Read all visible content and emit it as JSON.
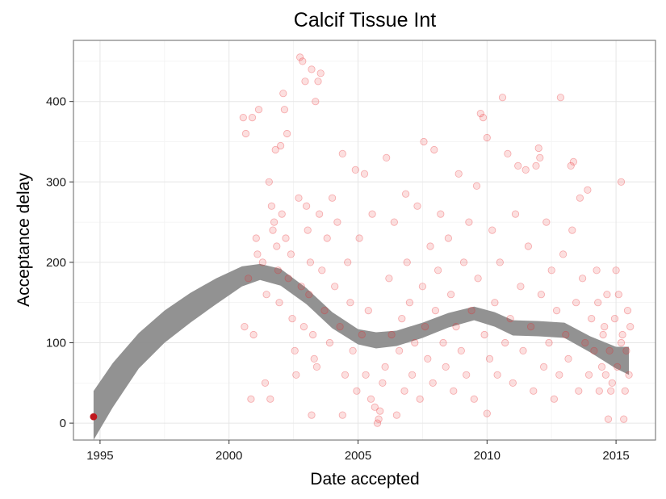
{
  "chart_data": {
    "type": "scatter",
    "title": "Calcif Tissue Int",
    "xlabel": "Date accepted",
    "ylabel": "Acceptance delay",
    "xlim": [
      1993.97,
      2016.53
    ],
    "ylim": [
      -21,
      476
    ],
    "x_ticks": [
      1995,
      2000,
      2005,
      2010,
      2015
    ],
    "x_tick_labels": [
      "1995",
      "2000",
      "2005",
      "2010",
      "2015"
    ],
    "y_ticks": [
      0,
      100,
      200,
      300,
      400
    ],
    "y_tick_labels": [
      "0",
      "100",
      "200",
      "300",
      "400"
    ],
    "grid": true,
    "legend": "none",
    "point_color": "#e8252b",
    "point_opacity": 0.15,
    "highlight_point": {
      "x": 1994.75,
      "y": 8,
      "color": "#c0181e"
    },
    "points": [
      [
        2000.55,
        380
      ],
      [
        2000.65,
        360
      ],
      [
        2000.9,
        380
      ],
      [
        2001.15,
        390
      ],
      [
        2001.8,
        340
      ],
      [
        2002.0,
        345
      ],
      [
        2002.1,
        410
      ],
      [
        2002.15,
        390
      ],
      [
        2002.25,
        360
      ],
      [
        2002.75,
        455
      ],
      [
        2002.85,
        450
      ],
      [
        2002.95,
        425
      ],
      [
        2003.2,
        440
      ],
      [
        2003.35,
        400
      ],
      [
        2003.45,
        425
      ],
      [
        2003.55,
        435
      ],
      [
        2003.0,
        270
      ],
      [
        2004.4,
        335
      ],
      [
        2004.9,
        315
      ],
      [
        2005.25,
        310
      ],
      [
        2005.55,
        260
      ],
      [
        2006.1,
        330
      ],
      [
        2006.85,
        285
      ],
      [
        2007.55,
        350
      ],
      [
        2007.95,
        340
      ],
      [
        2008.9,
        310
      ],
      [
        2009.6,
        295
      ],
      [
        2009.75,
        385
      ],
      [
        2009.85,
        380
      ],
      [
        2010.0,
        355
      ],
      [
        2010.6,
        405
      ],
      [
        2010.8,
        335
      ],
      [
        2011.2,
        320
      ],
      [
        2011.5,
        315
      ],
      [
        2011.9,
        320
      ],
      [
        2012.0,
        342
      ],
      [
        2012.05,
        330
      ],
      [
        2012.85,
        405
      ],
      [
        2013.25,
        320
      ],
      [
        2013.35,
        325
      ],
      [
        2013.6,
        280
      ],
      [
        2013.9,
        290
      ],
      [
        2014.3,
        150
      ],
      [
        2014.5,
        110
      ],
      [
        2015.2,
        300
      ],
      [
        2015.2,
        100
      ],
      [
        2015.0,
        190
      ],
      [
        2014.8,
        40
      ],
      [
        2014.6,
        60
      ],
      [
        2014.7,
        5
      ],
      [
        2015.3,
        5
      ],
      [
        2010.0,
        12
      ],
      [
        2005.8,
        5
      ],
      [
        2005.75,
        0
      ],
      [
        2006.5,
        10
      ],
      [
        2004.4,
        10
      ],
      [
        2003.2,
        10
      ],
      [
        2001.4,
        50
      ],
      [
        2001.6,
        30
      ],
      [
        2000.85,
        30
      ],
      [
        2000.6,
        120
      ],
      [
        2000.75,
        180
      ],
      [
        2000.95,
        110
      ],
      [
        2001.05,
        230
      ],
      [
        2001.1,
        210
      ],
      [
        2001.3,
        200
      ],
      [
        2001.45,
        160
      ],
      [
        2001.55,
        300
      ],
      [
        2001.65,
        270
      ],
      [
        2001.7,
        240
      ],
      [
        2001.75,
        250
      ],
      [
        2001.85,
        220
      ],
      [
        2001.9,
        190
      ],
      [
        2001.95,
        150
      ],
      [
        2002.05,
        260
      ],
      [
        2002.2,
        230
      ],
      [
        2002.3,
        180
      ],
      [
        2002.4,
        210
      ],
      [
        2002.45,
        130
      ],
      [
        2002.55,
        90
      ],
      [
        2002.6,
        60
      ],
      [
        2002.7,
        280
      ],
      [
        2002.8,
        170
      ],
      [
        2002.9,
        120
      ],
      [
        2003.05,
        240
      ],
      [
        2003.1,
        160
      ],
      [
        2003.15,
        200
      ],
      [
        2003.25,
        110
      ],
      [
        2003.3,
        80
      ],
      [
        2003.4,
        70
      ],
      [
        2003.5,
        260
      ],
      [
        2003.6,
        190
      ],
      [
        2003.7,
        140
      ],
      [
        2003.8,
        230
      ],
      [
        2003.9,
        100
      ],
      [
        2004.0,
        280
      ],
      [
        2004.1,
        170
      ],
      [
        2004.2,
        250
      ],
      [
        2004.3,
        120
      ],
      [
        2004.5,
        60
      ],
      [
        2004.6,
        200
      ],
      [
        2004.7,
        150
      ],
      [
        2004.8,
        90
      ],
      [
        2004.95,
        40
      ],
      [
        2005.05,
        230
      ],
      [
        2005.15,
        110
      ],
      [
        2005.3,
        60
      ],
      [
        2005.4,
        140
      ],
      [
        2005.5,
        30
      ],
      [
        2005.65,
        20
      ],
      [
        2005.85,
        15
      ],
      [
        2005.95,
        50
      ],
      [
        2006.05,
        70
      ],
      [
        2006.2,
        180
      ],
      [
        2006.3,
        110
      ],
      [
        2006.4,
        250
      ],
      [
        2006.6,
        90
      ],
      [
        2006.7,
        130
      ],
      [
        2006.8,
        40
      ],
      [
        2006.9,
        200
      ],
      [
        2007.0,
        150
      ],
      [
        2007.1,
        60
      ],
      [
        2007.2,
        100
      ],
      [
        2007.3,
        270
      ],
      [
        2007.4,
        30
      ],
      [
        2007.5,
        170
      ],
      [
        2007.6,
        120
      ],
      [
        2007.7,
        80
      ],
      [
        2007.8,
        220
      ],
      [
        2007.9,
        50
      ],
      [
        2008.0,
        140
      ],
      [
        2008.1,
        190
      ],
      [
        2008.2,
        260
      ],
      [
        2008.3,
        100
      ],
      [
        2008.4,
        70
      ],
      [
        2008.5,
        230
      ],
      [
        2008.6,
        160
      ],
      [
        2008.7,
        40
      ],
      [
        2008.8,
        120
      ],
      [
        2009.0,
        90
      ],
      [
        2009.1,
        200
      ],
      [
        2009.2,
        60
      ],
      [
        2009.3,
        250
      ],
      [
        2009.4,
        140
      ],
      [
        2009.5,
        30
      ],
      [
        2009.65,
        180
      ],
      [
        2009.9,
        110
      ],
      [
        2010.1,
        80
      ],
      [
        2010.2,
        240
      ],
      [
        2010.3,
        150
      ],
      [
        2010.4,
        60
      ],
      [
        2010.5,
        200
      ],
      [
        2010.7,
        100
      ],
      [
        2010.9,
        130
      ],
      [
        2011.0,
        50
      ],
      [
        2011.1,
        260
      ],
      [
        2011.3,
        170
      ],
      [
        2011.4,
        90
      ],
      [
        2011.6,
        220
      ],
      [
        2011.7,
        120
      ],
      [
        2011.8,
        40
      ],
      [
        2012.1,
        160
      ],
      [
        2012.2,
        70
      ],
      [
        2012.3,
        250
      ],
      [
        2012.4,
        100
      ],
      [
        2012.5,
        190
      ],
      [
        2012.6,
        30
      ],
      [
        2012.7,
        140
      ],
      [
        2012.8,
        60
      ],
      [
        2012.95,
        210
      ],
      [
        2013.05,
        110
      ],
      [
        2013.15,
        80
      ],
      [
        2013.3,
        240
      ],
      [
        2013.45,
        150
      ],
      [
        2013.55,
        40
      ],
      [
        2013.7,
        180
      ],
      [
        2013.8,
        100
      ],
      [
        2013.95,
        60
      ],
      [
        2014.05,
        130
      ],
      [
        2014.15,
        90
      ],
      [
        2014.25,
        190
      ],
      [
        2014.35,
        40
      ],
      [
        2014.45,
        70
      ],
      [
        2014.55,
        120
      ],
      [
        2014.65,
        160
      ],
      [
        2014.75,
        90
      ],
      [
        2014.85,
        50
      ],
      [
        2014.95,
        130
      ],
      [
        2015.05,
        70
      ],
      [
        2015.1,
        160
      ],
      [
        2015.25,
        110
      ],
      [
        2015.35,
        40
      ],
      [
        2015.4,
        90
      ],
      [
        2015.45,
        140
      ],
      [
        2015.5,
        60
      ],
      [
        2015.55,
        120
      ]
    ],
    "smooth_band": {
      "x": [
        1994.75,
        1995.5,
        1996.5,
        1997.5,
        1998.5,
        1999.5,
        2000.5,
        2001.2,
        2002.0,
        2003.0,
        2004.0,
        2005.0,
        2005.7,
        2006.5,
        2007.5,
        2008.5,
        2009.5,
        2010.3,
        2011.0,
        2012.0,
        2013.0,
        2014.0,
        2015.0,
        2015.5
      ],
      "upper": [
        40,
        75,
        112,
        140,
        162,
        180,
        195,
        198,
        192,
        168,
        138,
        117,
        113,
        115,
        125,
        137,
        145,
        138,
        128,
        127,
        125,
        108,
        95,
        95
      ],
      "lower": [
        -21,
        20,
        68,
        100,
        125,
        148,
        170,
        178,
        171,
        148,
        118,
        98,
        93,
        96,
        106,
        119,
        128,
        120,
        109,
        108,
        106,
        88,
        68,
        60
      ]
    }
  }
}
